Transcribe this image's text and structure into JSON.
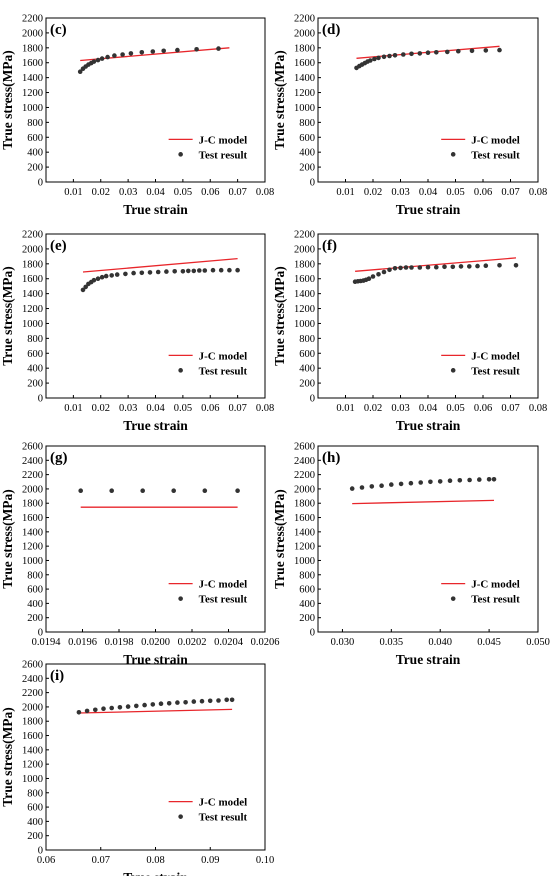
{
  "chart_data": [
    {
      "panel_label": "(c)",
      "type": "scatter",
      "xlabel": "True strain",
      "ylabel": "True stress(MPa)",
      "xlim": [
        0.0,
        0.08
      ],
      "ylim": [
        0,
        2200
      ],
      "xticks": [
        "0.01",
        "0.02",
        "0.03",
        "0.04",
        "0.05",
        "0.06",
        "0.07",
        "0.08"
      ],
      "yticks": [
        "0",
        "200",
        "400",
        "600",
        "800",
        "1000",
        "1200",
        "1400",
        "1600",
        "1800",
        "2000",
        "2200"
      ],
      "legend_position": "lower-right",
      "series": [
        {
          "name": "J-C model",
          "kind": "line",
          "color": "#e8262b",
          "x": [
            0.0125,
            0.067
          ],
          "y": [
            1630,
            1800
          ]
        },
        {
          "name": "Test result",
          "kind": "points",
          "color": "#333333",
          "x": [
            0.0125,
            0.0135,
            0.0145,
            0.0155,
            0.0165,
            0.0175,
            0.019,
            0.0205,
            0.0225,
            0.025,
            0.028,
            0.031,
            0.035,
            0.039,
            0.043,
            0.048,
            0.055,
            0.063
          ],
          "y": [
            1480,
            1520,
            1550,
            1575,
            1595,
            1615,
            1635,
            1655,
            1675,
            1695,
            1710,
            1725,
            1740,
            1750,
            1760,
            1770,
            1780,
            1790
          ]
        }
      ]
    },
    {
      "panel_label": "(d)",
      "type": "scatter",
      "xlabel": "True strain",
      "ylabel": "True stress(MPa)",
      "xlim": [
        0.0,
        0.08
      ],
      "ylim": [
        0,
        2200
      ],
      "xticks": [
        "0.01",
        "0.02",
        "0.03",
        "0.04",
        "0.05",
        "0.06",
        "0.07",
        "0.08"
      ],
      "yticks": [
        "0",
        "200",
        "400",
        "600",
        "800",
        "1000",
        "1200",
        "1400",
        "1600",
        "1800",
        "2000",
        "2200"
      ],
      "legend_position": "lower-right",
      "series": [
        {
          "name": "J-C model",
          "kind": "line",
          "color": "#e8262b",
          "x": [
            0.014,
            0.066
          ],
          "y": [
            1660,
            1820
          ]
        },
        {
          "name": "Test result",
          "kind": "points",
          "color": "#333333",
          "x": [
            0.014,
            0.015,
            0.016,
            0.017,
            0.018,
            0.019,
            0.0205,
            0.022,
            0.024,
            0.026,
            0.028,
            0.031,
            0.034,
            0.037,
            0.04,
            0.043,
            0.047,
            0.051,
            0.056,
            0.061,
            0.066
          ],
          "y": [
            1530,
            1555,
            1575,
            1595,
            1615,
            1630,
            1650,
            1665,
            1680,
            1690,
            1700,
            1710,
            1720,
            1725,
            1735,
            1740,
            1745,
            1755,
            1760,
            1765,
            1770
          ]
        }
      ]
    },
    {
      "panel_label": "(e)",
      "type": "scatter",
      "xlabel": "True strain",
      "ylabel": "True stress(MPa)",
      "xlim": [
        0.0,
        0.08
      ],
      "ylim": [
        0,
        2200
      ],
      "xticks": [
        "0.01",
        "0.02",
        "0.03",
        "0.04",
        "0.05",
        "0.06",
        "0.07",
        "0.08"
      ],
      "yticks": [
        "0",
        "200",
        "400",
        "600",
        "800",
        "1000",
        "1200",
        "1400",
        "1600",
        "1800",
        "2000",
        "2200"
      ],
      "legend_position": "lower-right",
      "series": [
        {
          "name": "J-C model",
          "kind": "line",
          "color": "#e8262b",
          "x": [
            0.0135,
            0.07
          ],
          "y": [
            1690,
            1870
          ]
        },
        {
          "name": "Test result",
          "kind": "points",
          "color": "#333333",
          "x": [
            0.0135,
            0.0145,
            0.0155,
            0.0165,
            0.0175,
            0.019,
            0.0205,
            0.022,
            0.024,
            0.026,
            0.029,
            0.032,
            0.035,
            0.038,
            0.041,
            0.044,
            0.047,
            0.05,
            0.052,
            0.054,
            0.056,
            0.058,
            0.061,
            0.064,
            0.067,
            0.07
          ],
          "y": [
            1450,
            1490,
            1530,
            1555,
            1580,
            1600,
            1620,
            1635,
            1645,
            1655,
            1665,
            1675,
            1680,
            1685,
            1690,
            1695,
            1700,
            1700,
            1705,
            1705,
            1710,
            1710,
            1715,
            1715,
            1715,
            1715
          ]
        }
      ]
    },
    {
      "panel_label": "(f)",
      "type": "scatter",
      "xlabel": "True strain",
      "ylabel": "True stress(MPa)",
      "xlim": [
        0.0,
        0.08
      ],
      "ylim": [
        0,
        2200
      ],
      "xticks": [
        "0.01",
        "0.02",
        "0.03",
        "0.04",
        "0.05",
        "0.06",
        "0.07",
        "0.08"
      ],
      "yticks": [
        "0",
        "200",
        "400",
        "600",
        "800",
        "1000",
        "1200",
        "1400",
        "1600",
        "1800",
        "2000",
        "2200"
      ],
      "legend_position": "lower-right",
      "series": [
        {
          "name": "J-C model",
          "kind": "line",
          "color": "#e8262b",
          "x": [
            0.0135,
            0.072
          ],
          "y": [
            1700,
            1880
          ]
        },
        {
          "name": "Test result",
          "kind": "points",
          "color": "#333333",
          "x": [
            0.0135,
            0.0145,
            0.0155,
            0.0165,
            0.0175,
            0.0185,
            0.02,
            0.022,
            0.024,
            0.026,
            0.028,
            0.03,
            0.032,
            0.034,
            0.037,
            0.04,
            0.043,
            0.046,
            0.049,
            0.052,
            0.055,
            0.058,
            0.061,
            0.066,
            0.072
          ],
          "y": [
            1560,
            1565,
            1570,
            1575,
            1585,
            1600,
            1630,
            1660,
            1690,
            1720,
            1740,
            1745,
            1750,
            1750,
            1750,
            1755,
            1755,
            1760,
            1760,
            1765,
            1765,
            1770,
            1775,
            1780,
            1780
          ]
        }
      ]
    },
    {
      "panel_label": "(g)",
      "type": "scatter",
      "xlabel": "True strain",
      "ylabel": "True stress(MPa)",
      "xlim": [
        0.0194,
        0.0206
      ],
      "ylim": [
        0,
        2600
      ],
      "xticks": [
        "0.0194",
        "0.0196",
        "0.0198",
        "0.0200",
        "0.0202",
        "0.0204",
        "0.0206"
      ],
      "yticks": [
        "0",
        "200",
        "400",
        "600",
        "800",
        "1000",
        "1200",
        "1400",
        "1600",
        "1800",
        "2000",
        "2200",
        "2400",
        "2600"
      ],
      "legend_position": "lower-right",
      "series": [
        {
          "name": "J-C model",
          "kind": "line",
          "color": "#e8262b",
          "x": [
            0.01959,
            0.02045
          ],
          "y": [
            1745,
            1745
          ]
        },
        {
          "name": "Test result",
          "kind": "points",
          "color": "#333333",
          "x": [
            0.01959,
            0.01976,
            0.01993,
            0.0201,
            0.02027,
            0.02045
          ],
          "y": [
            1975,
            1975,
            1975,
            1975,
            1975,
            1975
          ]
        }
      ]
    },
    {
      "panel_label": "(h)",
      "type": "scatter",
      "xlabel": "True strain",
      "ylabel": "True stress(MPa)",
      "xlim": [
        0.0275,
        0.05
      ],
      "ylim": [
        0,
        2600
      ],
      "xticks": [
        "0.030",
        "0.035",
        "0.040",
        "0.045",
        "0.050"
      ],
      "yticks": [
        "0",
        "200",
        "400",
        "600",
        "800",
        "1000",
        "1200",
        "1400",
        "1600",
        "1800",
        "2000",
        "2200",
        "2400",
        "2600"
      ],
      "legend_position": "lower-right",
      "series": [
        {
          "name": "J-C model",
          "kind": "line",
          "color": "#e8262b",
          "x": [
            0.031,
            0.0455
          ],
          "y": [
            1795,
            1840
          ]
        },
        {
          "name": "Test result",
          "kind": "points",
          "color": "#333333",
          "x": [
            0.031,
            0.032,
            0.033,
            0.034,
            0.035,
            0.036,
            0.037,
            0.038,
            0.039,
            0.04,
            0.041,
            0.042,
            0.043,
            0.044,
            0.045,
            0.0455
          ],
          "y": [
            2005,
            2020,
            2035,
            2045,
            2060,
            2070,
            2080,
            2090,
            2100,
            2105,
            2115,
            2120,
            2125,
            2130,
            2135,
            2135
          ]
        }
      ]
    },
    {
      "panel_label": "(i)",
      "type": "scatter",
      "xlabel": "True strain",
      "ylabel": "True stress(MPa)",
      "xlim": [
        0.06,
        0.1
      ],
      "ylim": [
        0,
        2600
      ],
      "xticks": [
        "0.06",
        "0.07",
        "0.08",
        "0.09",
        "0.10"
      ],
      "yticks": [
        "0",
        "200",
        "400",
        "600",
        "800",
        "1000",
        "1200",
        "1400",
        "1600",
        "1800",
        "2000",
        "2200",
        "2400",
        "2600"
      ],
      "legend_position": "lower-right",
      "series": [
        {
          "name": "J-C model",
          "kind": "line",
          "color": "#e8262b",
          "x": [
            0.066,
            0.094
          ],
          "y": [
            1915,
            1965
          ]
        },
        {
          "name": "Test result",
          "kind": "points",
          "color": "#333333",
          "x": [
            0.066,
            0.0675,
            0.069,
            0.0705,
            0.072,
            0.0735,
            0.075,
            0.0765,
            0.078,
            0.0795,
            0.081,
            0.0825,
            0.084,
            0.0855,
            0.087,
            0.0885,
            0.09,
            0.0915,
            0.093,
            0.094
          ],
          "y": [
            1925,
            1945,
            1960,
            1975,
            1985,
            1995,
            2005,
            2015,
            2025,
            2035,
            2045,
            2050,
            2060,
            2065,
            2075,
            2080,
            2085,
            2090,
            2100,
            2100
          ]
        }
      ]
    }
  ]
}
